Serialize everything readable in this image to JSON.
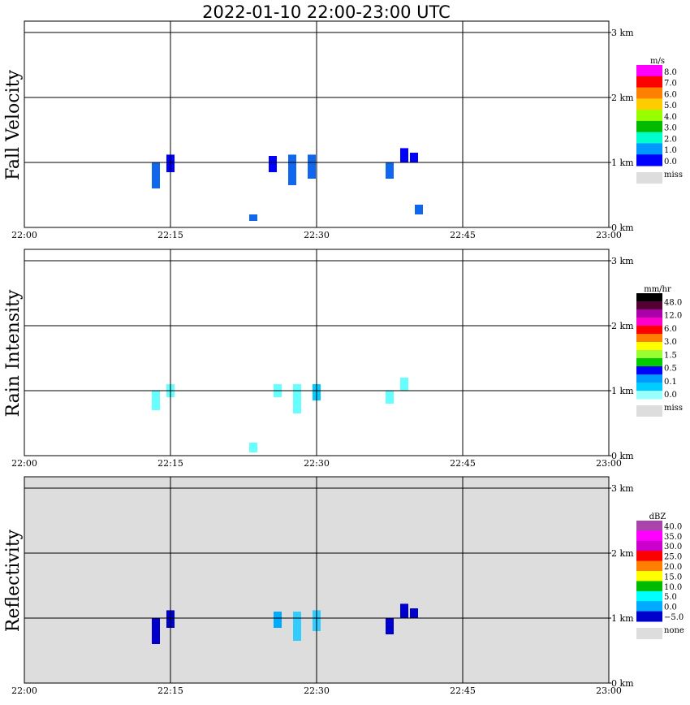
{
  "title": "2022-01-10   22:00-23:00 UTC",
  "chart_data": [
    {
      "type": "heatmap",
      "ylabel": "Fall Velocity",
      "x_ticks": [
        "22:00",
        "22:15",
        "22:30",
        "22:45",
        "23:00"
      ],
      "xlim": [
        "22:00",
        "23:00"
      ],
      "y_ticks": [
        "0 km",
        "1 km",
        "2 km",
        "3 km"
      ],
      "ylim_km": [
        0,
        3.2
      ],
      "grid": true,
      "background": "#ffffff",
      "colorbar": {
        "unit": "m/s",
        "labels": [
          "8.0",
          "7.0",
          "6.0",
          "5.0",
          "4.0",
          "3.0",
          "2.0",
          "1.0",
          "0.0"
        ],
        "colors": [
          "#ff00ff",
          "#ff0000",
          "#ff7f00",
          "#ffcc00",
          "#99ff00",
          "#00bb00",
          "#00ffcc",
          "#0099ff",
          "#0000ff"
        ],
        "missing_label": "miss",
        "missing_color": "#dddddd"
      },
      "echoes": [
        {
          "time": "22:13.5",
          "base_km": 0.6,
          "top_km": 1.0,
          "value": 1.5
        },
        {
          "time": "22:15",
          "base_km": 0.85,
          "top_km": 1.12,
          "value": 0.8
        },
        {
          "time": "22:25.5",
          "base_km": 0.85,
          "top_km": 1.1,
          "value": 0.8
        },
        {
          "time": "22:27.5",
          "base_km": 0.65,
          "top_km": 1.12,
          "value": 1.5
        },
        {
          "time": "22:29.5",
          "base_km": 0.75,
          "top_km": 1.12,
          "value": 1.2
        },
        {
          "time": "22:37.5",
          "base_km": 0.75,
          "top_km": 1.0,
          "value": 1.5
        },
        {
          "time": "22:39",
          "base_km": 1.0,
          "top_km": 1.22,
          "value": 0.8
        },
        {
          "time": "22:40",
          "base_km": 1.0,
          "top_km": 1.15,
          "value": 0.8
        },
        {
          "time": "22:23.5",
          "base_km": 0.1,
          "top_km": 0.2,
          "value": 1.2
        },
        {
          "time": "22:40.5",
          "base_km": 0.2,
          "top_km": 0.35,
          "value": 1.5
        }
      ]
    },
    {
      "type": "heatmap",
      "ylabel": "Rain Intensity",
      "x_ticks": [
        "22:00",
        "22:15",
        "22:30",
        "22:45",
        "23:00"
      ],
      "xlim": [
        "22:00",
        "23:00"
      ],
      "y_ticks": [
        "0 km",
        "1 km",
        "2 km",
        "3 km"
      ],
      "ylim_km": [
        0,
        3.2
      ],
      "grid": true,
      "background": "#ffffff",
      "colorbar": {
        "unit": "mm/hr",
        "labels": [
          "48.0",
          "12.0",
          "6.0",
          "3.0",
          "1.5",
          "0.5",
          "0.1",
          "0.0"
        ],
        "colors": [
          "#000000",
          "#550033",
          "#aa00aa",
          "#ff00cc",
          "#ff0000",
          "#ff7f00",
          "#ffff00",
          "#99ff33",
          "#00cc00",
          "#0000ff",
          "#0099ff",
          "#00ccff",
          "#99ffff"
        ],
        "missing_label": "miss",
        "missing_color": "#dddddd"
      },
      "echoes": [
        {
          "time": "22:13.5",
          "base_km": 0.7,
          "top_km": 1.0,
          "value": 0.1
        },
        {
          "time": "22:15",
          "base_km": 0.9,
          "top_km": 1.1,
          "value": 0.1
        },
        {
          "time": "22:26",
          "base_km": 0.9,
          "top_km": 1.1,
          "value": 0.1
        },
        {
          "time": "22:28",
          "base_km": 0.65,
          "top_km": 1.1,
          "value": 0.1
        },
        {
          "time": "22:30",
          "base_km": 0.85,
          "top_km": 1.1,
          "value": 0.3
        },
        {
          "time": "22:37.5",
          "base_km": 0.8,
          "top_km": 1.0,
          "value": 0.1
        },
        {
          "time": "22:39",
          "base_km": 1.0,
          "top_km": 1.2,
          "value": 0.1
        },
        {
          "time": "22:23.5",
          "base_km": 0.05,
          "top_km": 0.2,
          "value": 0.1
        }
      ]
    },
    {
      "type": "heatmap",
      "ylabel": "Reflectivity",
      "x_ticks": [
        "22:00",
        "22:15",
        "22:30",
        "22:45",
        "23:00"
      ],
      "xlim": [
        "22:00",
        "23:00"
      ],
      "y_ticks": [
        "0 km",
        "1 km",
        "2 km",
        "3 km"
      ],
      "ylim_km": [
        0,
        3.2
      ],
      "grid": true,
      "background": "#dddddd",
      "colorbar": {
        "unit": "dBZ",
        "labels": [
          "40.0",
          "35.0",
          "30.0",
          "25.0",
          "20.0",
          "15.0",
          "10.0",
          "5.0",
          "0.0",
          "−5.0"
        ],
        "colors": [
          "#aa44aa",
          "#ff00ff",
          "#cc00cc",
          "#ff0000",
          "#ff7f00",
          "#ffff00",
          "#00bb00",
          "#00ffff",
          "#00aaff",
          "#0000cc"
        ],
        "missing_label": "none",
        "missing_color": "#dddddd"
      },
      "echoes": [
        {
          "time": "22:13.5",
          "base_km": 0.6,
          "top_km": 1.0,
          "value": -3
        },
        {
          "time": "22:15",
          "base_km": 0.85,
          "top_km": 1.12,
          "value": -3
        },
        {
          "time": "22:26",
          "base_km": 0.85,
          "top_km": 1.1,
          "value": 2
        },
        {
          "time": "22:28",
          "base_km": 0.65,
          "top_km": 1.1,
          "value": 7
        },
        {
          "time": "22:30",
          "base_km": 0.8,
          "top_km": 1.12,
          "value": 9
        },
        {
          "time": "22:37.5",
          "base_km": 0.75,
          "top_km": 1.0,
          "value": -3
        },
        {
          "time": "22:39",
          "base_km": 1.0,
          "top_km": 1.22,
          "value": -3
        },
        {
          "time": "22:40",
          "base_km": 1.0,
          "top_km": 1.15,
          "value": -3
        }
      ]
    }
  ]
}
